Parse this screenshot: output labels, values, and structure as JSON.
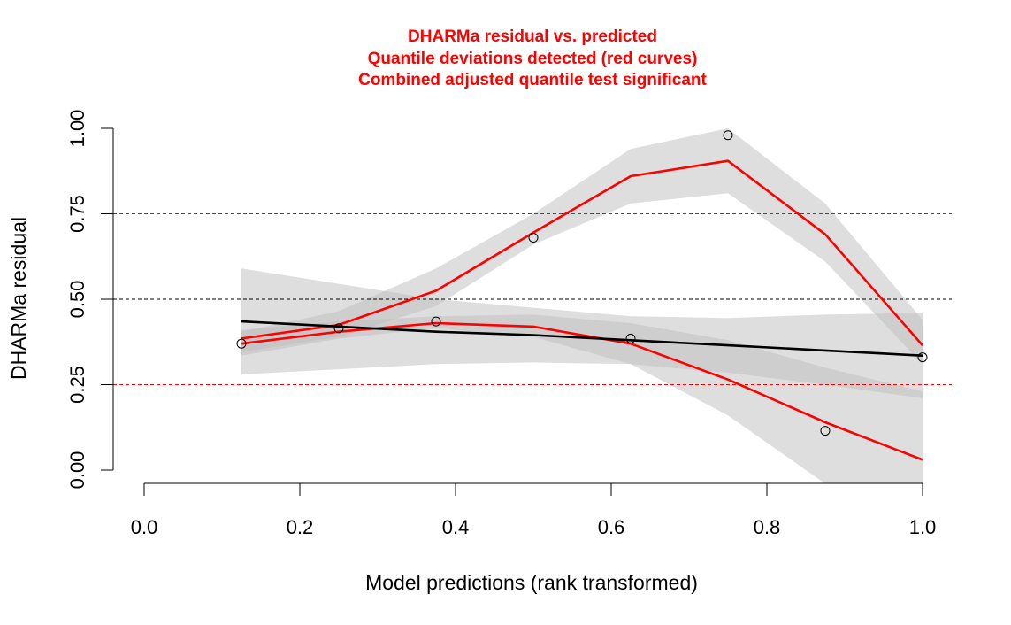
{
  "chart_data": {
    "type": "scatter",
    "title_lines": [
      "DHARMa residual vs. predicted",
      "Quantile deviations detected (red curves)",
      "Combined adjusted quantile test significant"
    ],
    "title_color": "#ff0000",
    "xlabel": "Model predictions (rank transformed)",
    "ylabel": "DHARMa residual",
    "xlim": [
      0.0,
      1.0
    ],
    "ylim": [
      0.0,
      1.0
    ],
    "x_ticks": [
      0.0,
      0.2,
      0.4,
      0.6,
      0.8,
      1.0
    ],
    "x_tick_labels": [
      "0.0",
      "0.2",
      "0.4",
      "0.6",
      "0.8",
      "1.0"
    ],
    "y_ticks": [
      0.0,
      0.25,
      0.5,
      0.75,
      1.0
    ],
    "y_tick_labels": [
      "0.00",
      "0.25",
      "0.50",
      "0.75",
      "1.00"
    ],
    "reference_lines": [
      {
        "y": 0.25,
        "color": "#ff0000"
      },
      {
        "y": 0.5,
        "color": "#000000"
      },
      {
        "y": 0.75,
        "color": "#ff0000"
      }
    ],
    "points": {
      "x": [
        0.125,
        0.25,
        0.375,
        0.5,
        0.625,
        0.75,
        0.875,
        1.0
      ],
      "y": [
        0.37,
        0.415,
        0.435,
        0.68,
        0.385,
        0.98,
        0.115,
        0.33
      ]
    },
    "series": [
      {
        "color": "#ff0000",
        "x": [
          0.125,
          0.25,
          0.375,
          0.5,
          0.625,
          0.75,
          0.875,
          1.0
        ],
        "y": [
          0.385,
          0.425,
          0.525,
          0.695,
          0.86,
          0.905,
          0.69,
          0.365
        ],
        "band_lower": [
          0.345,
          0.39,
          0.48,
          0.66,
          0.78,
          0.81,
          0.61,
          0.31
        ],
        "band_upper": [
          0.405,
          0.465,
          0.59,
          0.75,
          0.94,
          1.0,
          0.78,
          0.44
        ]
      },
      {
        "color": "#ff0000",
        "x": [
          0.125,
          0.25,
          0.375,
          0.5,
          0.625,
          0.75,
          0.875,
          1.0
        ],
        "y": [
          0.37,
          0.405,
          0.43,
          0.42,
          0.37,
          0.265,
          0.14,
          0.03
        ],
        "band_lower": [
          0.335,
          0.385,
          0.415,
          0.39,
          0.31,
          0.16,
          -0.04,
          -0.1
        ],
        "band_upper": [
          0.41,
          0.435,
          0.45,
          0.455,
          0.43,
          0.38,
          0.3,
          0.23
        ]
      },
      {
        "color": "#000000",
        "x": [
          0.125,
          0.25,
          0.375,
          0.5,
          0.625,
          0.75,
          0.875,
          1.0
        ],
        "y": [
          0.435,
          0.42,
          0.405,
          0.395,
          0.38,
          0.365,
          0.35,
          0.335
        ],
        "band_lower": [
          0.28,
          0.295,
          0.31,
          0.315,
          0.31,
          0.285,
          0.25,
          0.21
        ],
        "band_upper": [
          0.59,
          0.545,
          0.5,
          0.475,
          0.45,
          0.445,
          0.455,
          0.46
        ]
      }
    ],
    "band_color": "#bebebe",
    "grid": false,
    "legend": "none"
  }
}
